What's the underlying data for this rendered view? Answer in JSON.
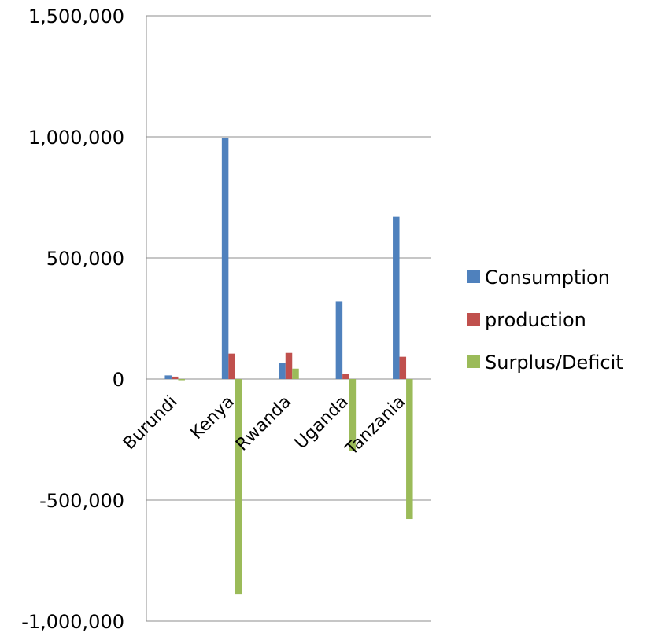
{
  "chart_data": {
    "type": "bar",
    "categories": [
      "Burundi",
      "Kenya",
      "Rwanda",
      "Uganda",
      "Tanzania"
    ],
    "series": [
      {
        "name": "Consumption",
        "color": "#4F81BD",
        "values": [
          15000,
          995000,
          65000,
          320000,
          670000
        ]
      },
      {
        "name": "production",
        "color": "#C0504D",
        "values": [
          10000,
          105000,
          108000,
          22000,
          92000
        ]
      },
      {
        "name": "Surplus/Deficit",
        "color": "#9BBB59",
        "values": [
          -5000,
          -890000,
          43000,
          -298000,
          -578000
        ]
      }
    ],
    "ylim": [
      -1000000,
      1500000
    ],
    "yticks": [
      1500000,
      1000000,
      500000,
      0,
      -500000,
      -1000000
    ],
    "ytick_labels": [
      "1,500,000",
      "1,000,000",
      "500,000",
      "0",
      "-500,000",
      "-1,000,000"
    ],
    "grid": true,
    "legend_position": "right",
    "title": "",
    "xlabel": "",
    "ylabel": ""
  }
}
